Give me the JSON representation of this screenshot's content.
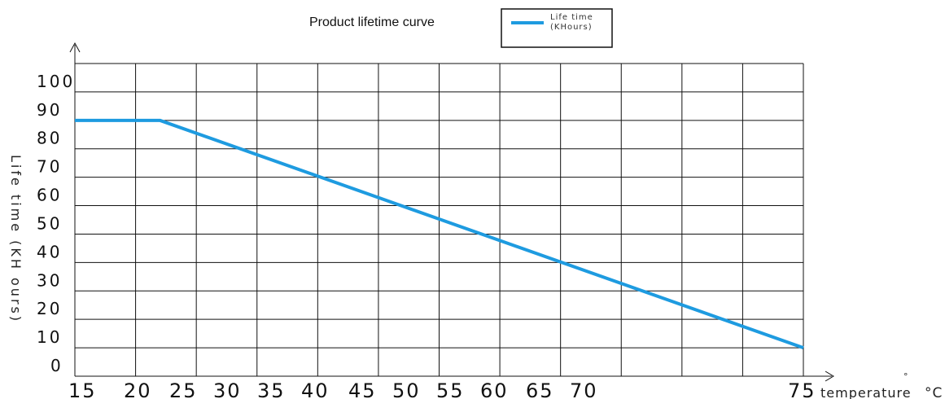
{
  "chart_data": {
    "type": "line",
    "title": "Product lifetime curve",
    "ylabel": "Life time (KH ours)",
    "xlabel": "temperature",
    "xlabel_unit": "°C",
    "degree_mark": "°",
    "x_tick_labels": [
      "15",
      "20",
      "25",
      "30",
      "35",
      "40",
      "45",
      "50",
      "55",
      "60",
      "65",
      "70",
      "75"
    ],
    "y_tick_labels": [
      "0",
      "10",
      "20",
      "30",
      "40",
      "50",
      "60",
      "70",
      "80",
      "90",
      "100"
    ],
    "ylim": [
      0,
      110
    ],
    "grid": true,
    "legend_position": "top-center",
    "legend_lines": [
      "Life  time",
      "(KHours)"
    ],
    "series": [
      {
        "name": "Life  time (KHours)",
        "color": "#1e9be0",
        "points": [
          {
            "x": 15,
            "y": 90
          },
          {
            "x": 22,
            "y": 90
          },
          {
            "x": 75,
            "y": 10
          }
        ]
      }
    ]
  }
}
